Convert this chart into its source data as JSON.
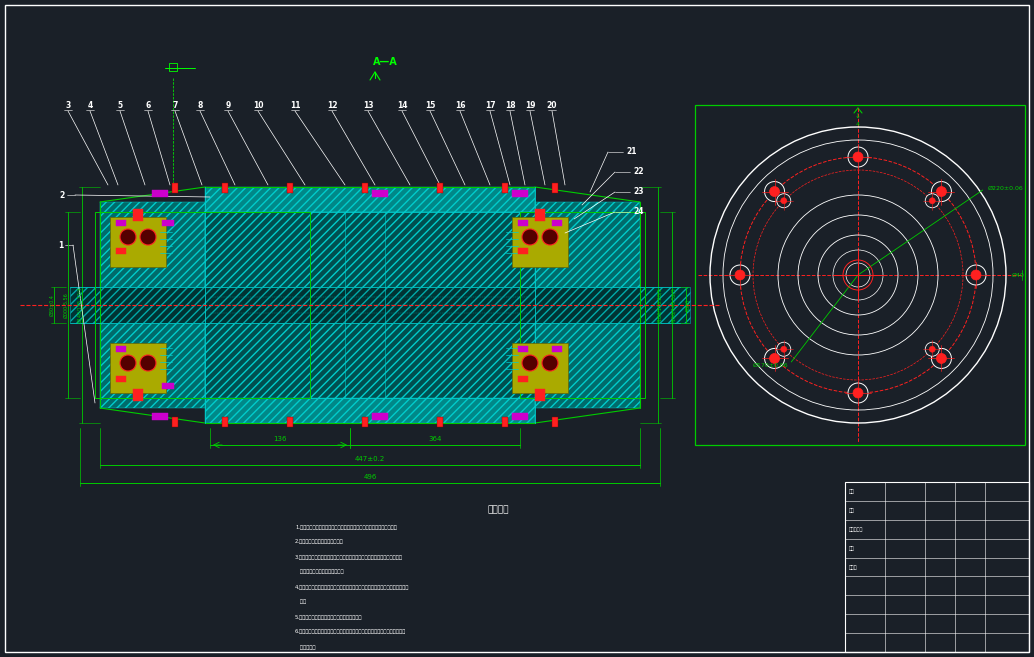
{
  "bg_color": "#1a2028",
  "green": "#00cc00",
  "bright_green": "#00ff00",
  "cyan": "#00cccc",
  "teal_fill": "#006b6b",
  "teal_fill2": "#008888",
  "red": "#ff2020",
  "yellow_fill": "#aaaa00",
  "magenta": "#cc00cc",
  "white": "#ffffff",
  "dim_green": "#00aa00",
  "part_numbers_top": [
    "3",
    "4",
    "5",
    "6",
    "7",
    "8",
    "9",
    "10",
    "11",
    "12",
    "13",
    "14",
    "15",
    "16",
    "17",
    "18",
    "19",
    "20"
  ],
  "part_numbers_right": [
    "21",
    "22",
    "23",
    "24"
  ],
  "part_numbers_left": [
    "1",
    "2"
  ],
  "tech_title": "技术要求",
  "tech_lines": [
    "1.零件加工表面上，不允许有裂缝、折叠等缺陷妨碍零件表面完整性的。",
    "2.锐边去锐棱倒圆处须圆滑衔接。",
    "3.零件在锻把后应消除应力处理并干净，不得有毛刺、飞边、氧化皮、锈蚀、",
    "   划伤、油污、磁性等缺陷存在。",
    "4.图纸标注尺寸带有公差时主要标注方式打，例如是过盈配合尺寸不足则按照进行",
    "   处理",
    "5.铸铁过软则零件不允许轻、重、复杂型结构组",
    "6.修改注意时，严格打印出每次不小差距的具体参件，图示过修要注意是始终不",
    "   完全参照。"
  ]
}
